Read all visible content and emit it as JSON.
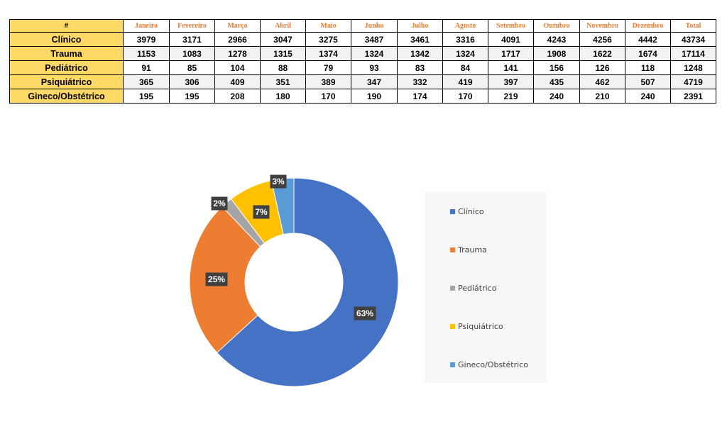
{
  "table": {
    "corner": "#",
    "months": [
      "Janeiro",
      "Fevereiro",
      "Março",
      "Abril",
      "Maio",
      "Junho",
      "Julho",
      "Agosto",
      "Setembro",
      "Outubro",
      "Novembro",
      "Dezembro",
      "Total"
    ],
    "rows": [
      {
        "label": "Clínico",
        "values": [
          "3979",
          "3171",
          "2966",
          "3047",
          "3275",
          "3487",
          "3461",
          "3316",
          "4091",
          "4243",
          "4256",
          "4442",
          "43734"
        ]
      },
      {
        "label": "Trauma",
        "values": [
          "1153",
          "1083",
          "1278",
          "1315",
          "1374",
          "1324",
          "1342",
          "1324",
          "1717",
          "1908",
          "1622",
          "1674",
          "17114"
        ]
      },
      {
        "label": "Pediátrico",
        "values": [
          "91",
          "85",
          "104",
          "88",
          "79",
          "93",
          "83",
          "84",
          "141",
          "156",
          "126",
          "118",
          "1248"
        ]
      },
      {
        "label": "Psiquiátrico",
        "values": [
          "365",
          "306",
          "409",
          "351",
          "389",
          "347",
          "332",
          "419",
          "397",
          "435",
          "462",
          "507",
          "4719"
        ]
      },
      {
        "label": "Gineco/Obstétrico",
        "values": [
          "195",
          "195",
          "208",
          "180",
          "170",
          "190",
          "174",
          "170",
          "219",
          "240",
          "210",
          "240",
          "2391"
        ]
      }
    ]
  },
  "chart_data": {
    "type": "pie",
    "donut": true,
    "categories": [
      "Clínico",
      "Trauma",
      "Pediátrico",
      "Psiquiátrico",
      "Gineco/Obstétrico"
    ],
    "values": [
      43734,
      17114,
      1248,
      4719,
      2391
    ],
    "data_labels": [
      "63%",
      "25%",
      "2%",
      "7%",
      "3%"
    ],
    "colors": [
      "#4472c4",
      "#ed7d31",
      "#a5a5a5",
      "#ffc000",
      "#5b9bd5"
    ],
    "legend_position": "right"
  }
}
